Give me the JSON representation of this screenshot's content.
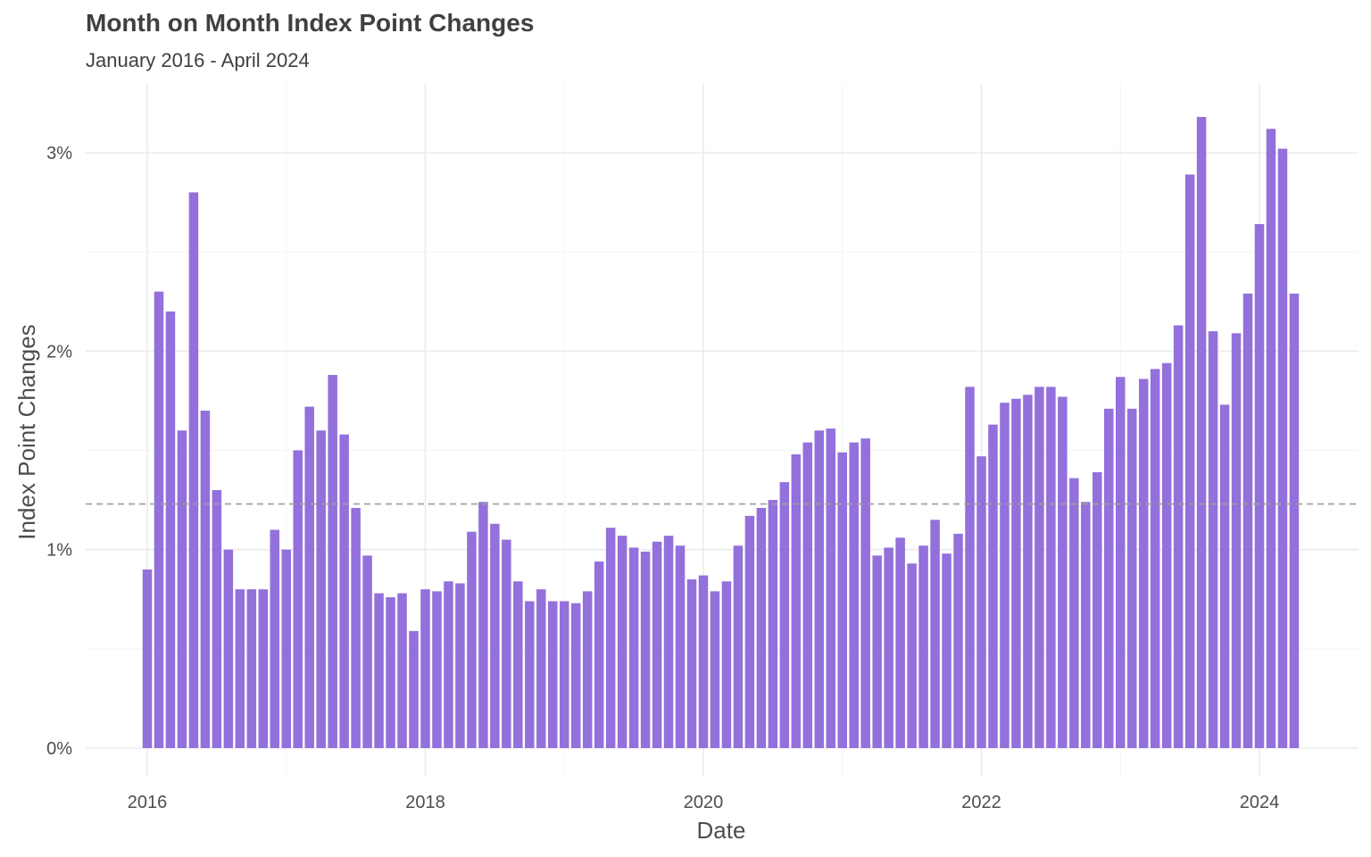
{
  "chart_data": {
    "type": "bar",
    "title": "Month on Month Index Point Changes",
    "subtitle": "January 2016 - April 2024",
    "xlabel": "Date",
    "ylabel": "Index Point Changes",
    "x_ticks": [
      "2016",
      "2018",
      "2020",
      "2022",
      "2024"
    ],
    "y_ticks": [
      "0%",
      "1%",
      "2%",
      "3%"
    ],
    "ylim": [
      0,
      3.3
    ],
    "grid": true,
    "bar_color": "#9370DB",
    "reference_line": {
      "value": 1.23,
      "style": "dashed",
      "color": "#9e9e9e"
    },
    "series": [
      {
        "start": "2016-01",
        "values": [
          0.9,
          2.3,
          2.2,
          1.6,
          2.8,
          1.7,
          1.3,
          1.0,
          0.8,
          0.8,
          0.8,
          1.1,
          1.0,
          1.5,
          1.72,
          1.6,
          1.88,
          1.58,
          1.21,
          0.97,
          0.78,
          0.76,
          0.78,
          0.59,
          0.8,
          0.79,
          0.84,
          0.83,
          1.09,
          1.24,
          1.13,
          1.05,
          0.84,
          0.74,
          0.8,
          0.74,
          0.74,
          0.73,
          0.79,
          0.94,
          1.11,
          1.07,
          1.01,
          0.99,
          1.04,
          1.07,
          1.02,
          0.85,
          0.87,
          0.79,
          0.84,
          1.02,
          1.17,
          1.21,
          1.25,
          1.34,
          1.48,
          1.54,
          1.6,
          1.61,
          1.49,
          1.54,
          1.56,
          0.97,
          1.01,
          1.06,
          0.93,
          1.02,
          1.15,
          0.98,
          1.08,
          1.82,
          1.47,
          1.63,
          1.74,
          1.76,
          1.78,
          1.82,
          1.82,
          1.77,
          1.36,
          1.24,
          1.39,
          1.71,
          1.87,
          1.71,
          1.86,
          1.91,
          1.94,
          2.13,
          2.89,
          3.18,
          2.1,
          1.73,
          2.09,
          2.29,
          2.64,
          3.12,
          3.02,
          2.29
        ]
      }
    ]
  }
}
